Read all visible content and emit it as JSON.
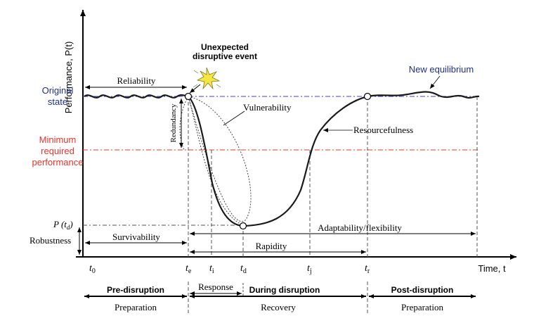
{
  "y_axis_label": "Performance, P(t)",
  "x_axis_label": "Time, t",
  "event_label_line1": "Unexpected",
  "event_label_line2": "disruptive event",
  "new_equilibrium": "New equilibrium",
  "original_state_line1": "Original",
  "original_state_line2": "state",
  "min_perf_line1": "Minimum",
  "min_perf_line2": "required",
  "min_perf_line3": "performance",
  "p_td_label": "P (t",
  "p_td_sub": "d",
  "p_td_close": ")",
  "labels": {
    "reliability": "Reliability",
    "redundancy": "Redundancy",
    "vulnerability": "Vulnerability",
    "resourcefulness": "Resourcefulness",
    "robustness": "Robustness",
    "survivability": "Survivability",
    "adaptability": "Adaptability/flexibility",
    "rapidity": "Rapidity"
  },
  "time_ticks": [
    {
      "t": "t",
      "sub": "0"
    },
    {
      "t": "t",
      "sub": "e"
    },
    {
      "t": "t",
      "sub": "i"
    },
    {
      "t": "t",
      "sub": "d"
    },
    {
      "t": "t",
      "sub": "j"
    },
    {
      "t": "t",
      "sub": "r"
    }
  ],
  "phases": {
    "pre_title": "Pre-disruption",
    "pre_sub": "Preparation",
    "response": "Response",
    "during_title": "During disruption",
    "during_sub": "Recovery",
    "post_title": "Post-disruption",
    "post_sub": "Preparation"
  },
  "colors": {
    "axis": "#000000",
    "curve": "#1a1a1a",
    "original_line": "#3344cc",
    "min_line": "#e8332a",
    "original_text": "#1f2f8a",
    "min_text": "#e8332a",
    "burst": "#f5e642"
  }
}
